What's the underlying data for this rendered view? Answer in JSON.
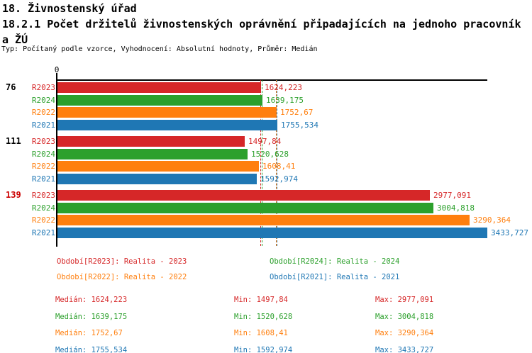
{
  "header": {
    "section_title": "18. Živnostenský úřad",
    "indicator_title": "18.2.1 Počet držitelů živnostenských oprávnění připadajících na jednoho pracovník",
    "indicator_title_wrap": "a ŽÚ",
    "meta": "Typ: Počítaný podle vzorce, Vyhodnocení: Absolutní hodnoty, Průměr: Medián"
  },
  "colors": {
    "R2023": "#d62728",
    "R2024": "#2ca02c",
    "R2022": "#ff7f0e",
    "R2021": "#1f77b4",
    "axis": "#000000",
    "group_label_default": "#000000",
    "group_label_highlight": "#cc0000"
  },
  "chart_data": {
    "type": "bar",
    "orientation": "horizontal",
    "axis_origin_label": "0",
    "xlim": [
      0,
      3433.727
    ],
    "grid": false,
    "series_order": [
      "R2023",
      "R2024",
      "R2022",
      "R2021"
    ],
    "groups": [
      {
        "label": "76",
        "label_color": "default",
        "bars": [
          {
            "series": "R2023",
            "value": 1624.223,
            "display": "1624,223"
          },
          {
            "series": "R2024",
            "value": 1639.175,
            "display": "1639,175"
          },
          {
            "series": "R2022",
            "value": 1752.67,
            "display": "1752,67"
          },
          {
            "series": "R2021",
            "value": 1755.534,
            "display": "1755,534"
          }
        ]
      },
      {
        "label": "111",
        "label_color": "default",
        "bars": [
          {
            "series": "R2023",
            "value": 1497.84,
            "display": "1497,84"
          },
          {
            "series": "R2024",
            "value": 1520.628,
            "display": "1520,628"
          },
          {
            "series": "R2022",
            "value": 1608.41,
            "display": "1608,41"
          },
          {
            "series": "R2021",
            "value": 1592.974,
            "display": "1592,974"
          }
        ]
      },
      {
        "label": "139",
        "label_color": "highlight",
        "bars": [
          {
            "series": "R2023",
            "value": 2977.091,
            "display": "2977,091"
          },
          {
            "series": "R2024",
            "value": 3004.818,
            "display": "3004,818"
          },
          {
            "series": "R2022",
            "value": 3290.364,
            "display": "3290,364"
          },
          {
            "series": "R2021",
            "value": 3433.727,
            "display": "3433,727"
          }
        ]
      }
    ],
    "median_lines": [
      {
        "series": "R2023",
        "value": 1624.223
      },
      {
        "series": "R2024",
        "value": 1639.175
      },
      {
        "series": "R2022",
        "value": 1752.67
      },
      {
        "series": "R2021",
        "value": 1755.534
      }
    ]
  },
  "legend": {
    "items": [
      {
        "series": "R2023",
        "label": "Období[R2023]: Realita - 2023"
      },
      {
        "series": "R2024",
        "label": "Období[R2024]: Realita - 2024"
      },
      {
        "series": "R2022",
        "label": "Období[R2022]: Realita - 2022"
      },
      {
        "series": "R2021",
        "label": "Období[R2021]: Realita - 2021"
      }
    ]
  },
  "stats": {
    "rows": [
      {
        "series": "R2023",
        "median": "Medián: 1624,223",
        "min": "Min: 1497,84",
        "max": "Max: 2977,091"
      },
      {
        "series": "R2024",
        "median": "Medián: 1639,175",
        "min": "Min: 1520,628",
        "max": "Max: 3004,818"
      },
      {
        "series": "R2022",
        "median": "Medián: 1752,67",
        "min": "Min: 1608,41",
        "max": "Max: 3290,364"
      },
      {
        "series": "R2021",
        "median": "Medián: 1755,534",
        "min": "Min: 1592,974",
        "max": "Max: 3433,727"
      }
    ]
  }
}
